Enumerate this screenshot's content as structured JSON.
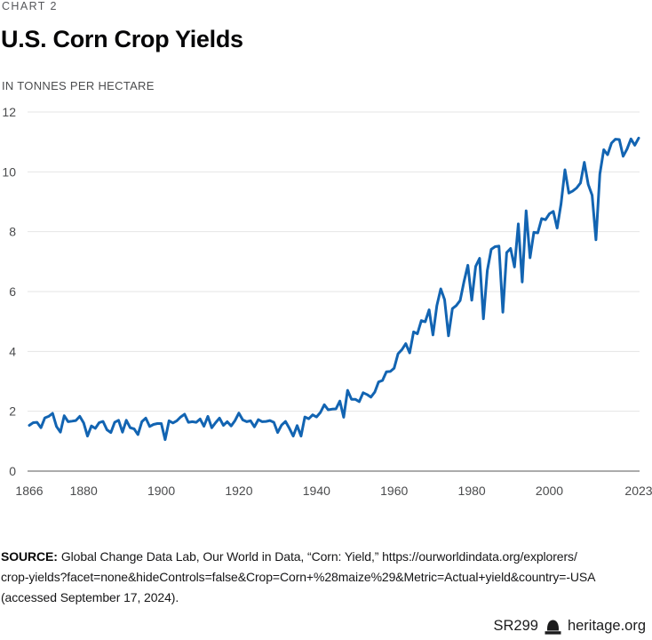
{
  "page": {
    "kicker": "CHART 2",
    "title": "U.S. Corn Crop Yields",
    "subtitle": "IN TONNES PER HECTARE"
  },
  "chart_data": {
    "type": "line",
    "title": "U.S. Corn Crop Yields",
    "unit_label": "IN TONNES PER HECTARE",
    "x_range": [
      1866,
      2023
    ],
    "x_step": 1,
    "x_ticks": [
      1866,
      1880,
      1900,
      1920,
      1940,
      1960,
      1980,
      2000,
      2023
    ],
    "y_ticks": [
      0,
      2,
      4,
      6,
      8,
      10,
      12
    ],
    "ylim": [
      0,
      12
    ],
    "grid": "horizontal-only",
    "legend": "none",
    "line_color": "#1264b2",
    "grid_color": "#e4e4e4",
    "axis_color": "#8f8f8f",
    "values": [
      1.53,
      1.62,
      1.63,
      1.45,
      1.78,
      1.83,
      1.93,
      1.49,
      1.3,
      1.85,
      1.65,
      1.67,
      1.69,
      1.83,
      1.61,
      1.17,
      1.51,
      1.43,
      1.62,
      1.66,
      1.38,
      1.29,
      1.63,
      1.7,
      1.3,
      1.7,
      1.45,
      1.41,
      1.22,
      1.65,
      1.77,
      1.49,
      1.56,
      1.59,
      1.59,
      1.05,
      1.68,
      1.61,
      1.68,
      1.81,
      1.9,
      1.63,
      1.65,
      1.63,
      1.74,
      1.5,
      1.83,
      1.45,
      1.62,
      1.77,
      1.53,
      1.65,
      1.51,
      1.69,
      1.94,
      1.71,
      1.65,
      1.68,
      1.48,
      1.72,
      1.65,
      1.66,
      1.69,
      1.63,
      1.29,
      1.54,
      1.66,
      1.43,
      1.17,
      1.52,
      1.17,
      1.81,
      1.75,
      1.88,
      1.81,
      1.96,
      2.22,
      2.05,
      2.07,
      2.08,
      2.34,
      1.8,
      2.7,
      2.4,
      2.4,
      2.32,
      2.62,
      2.56,
      2.47,
      2.64,
      2.98,
      3.03,
      3.32,
      3.33,
      3.44,
      3.92,
      4.06,
      4.26,
      3.95,
      4.65,
      4.59,
      5.03,
      4.99,
      5.39,
      4.55,
      5.53,
      6.09,
      5.73,
      4.52,
      5.43,
      5.53,
      5.7,
      6.34,
      6.88,
      5.71,
      6.84,
      7.11,
      5.09,
      6.7,
      7.41,
      7.5,
      7.52,
      5.31,
      7.3,
      7.44,
      6.82,
      8.26,
      6.32,
      8.7,
      7.13,
      7.98,
      7.96,
      8.44,
      8.4,
      8.6,
      8.68,
      8.12,
      8.93,
      10.07,
      9.29,
      9.36,
      9.46,
      9.63,
      10.32,
      9.58,
      9.22,
      7.73,
      9.93,
      10.74,
      10.57,
      10.96,
      11.09,
      11.08,
      10.52,
      10.76,
      11.1,
      10.89,
      11.13
    ]
  },
  "source": {
    "label": "SOURCE:",
    "line1_rest": "Global Change Data Lab, Our World in Data, “Corn: Yield,” https://ourworldindata.org/explorers/",
    "line2": "crop-yields?facet=none&hideControls=false&Crop=Corn+%28maize%29&Metric=Actual+yield&country=-USA",
    "line3": "(accessed September 17, 2024)."
  },
  "footer": {
    "report_id": "SR299",
    "site": "heritage.org"
  }
}
